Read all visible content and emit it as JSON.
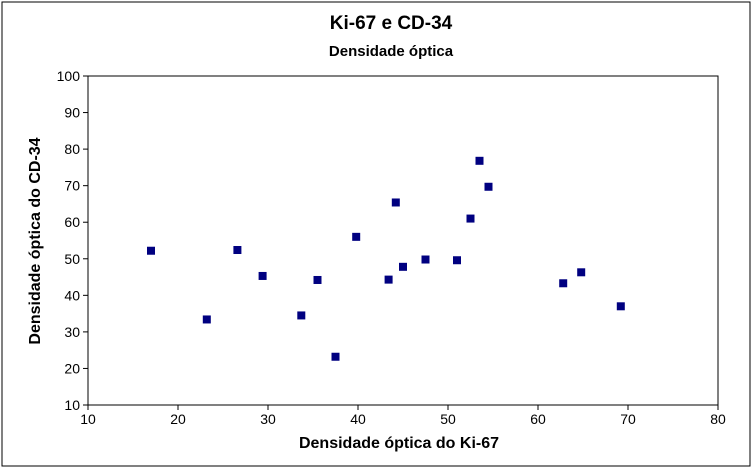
{
  "chart_data": {
    "type": "scatter",
    "title": "Ki-67 e CD-34",
    "subtitle": "Densidade óptica",
    "xlabel": "Densidade óptica do Ki-67",
    "ylabel": "Densidade óptica do CD-34",
    "xlim": [
      10,
      80
    ],
    "ylim": [
      10,
      100
    ],
    "xticks": [
      10,
      20,
      30,
      40,
      50,
      60,
      70,
      80
    ],
    "yticks": [
      10,
      20,
      30,
      40,
      50,
      60,
      70,
      80,
      90,
      100
    ],
    "grid": false,
    "marker_color": "#000080",
    "x": [
      17.0,
      23.2,
      26.6,
      29.4,
      33.7,
      35.5,
      37.5,
      39.8,
      43.4,
      44.2,
      45.0,
      47.5,
      51.0,
      52.5,
      53.5,
      54.5,
      62.8,
      64.8,
      69.2
    ],
    "y": [
      52.2,
      33.4,
      52.4,
      45.3,
      34.5,
      44.2,
      23.2,
      56.0,
      44.3,
      65.4,
      47.8,
      49.8,
      49.6,
      61.0,
      76.8,
      69.7,
      43.3,
      46.3,
      37.0
    ]
  },
  "colors": {
    "plot_background": "#ffffff",
    "outer_background": "#ffffff",
    "marker": "#000080",
    "axis": "#000000"
  }
}
